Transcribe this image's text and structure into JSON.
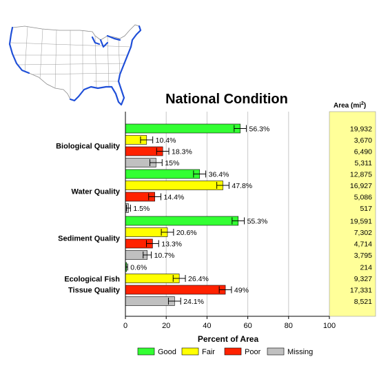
{
  "chart_data": {
    "type": "bar",
    "orientation": "horizontal",
    "title": "National Condition",
    "xlabel": "Percent of Area",
    "xlim": [
      0,
      100
    ],
    "xticks": [
      0,
      20,
      40,
      60,
      80,
      100
    ],
    "grid": true,
    "legend_position": "bottom",
    "area_column_title": "Area (mi",
    "area_column_unit_sup": "2",
    "area_column_title_end": ")",
    "area_column_color": "#ffff99",
    "series": [
      {
        "name": "Good",
        "color": "#33ff33"
      },
      {
        "name": "Fair",
        "color": "#ffff00"
      },
      {
        "name": "Poor",
        "color": "#ff2200"
      },
      {
        "name": "Missing",
        "color": "#c0c0c0"
      }
    ],
    "categories": [
      {
        "name_lines": [
          "Biological Quality"
        ],
        "values": [
          56.3,
          10.4,
          18.3,
          15
        ],
        "labels": [
          "56.3%",
          "10.4%",
          "18.3%",
          "15%"
        ],
        "errors": [
          3,
          3,
          3,
          3
        ],
        "areas": [
          "19,932",
          "3,670",
          "6,490",
          "5,311"
        ]
      },
      {
        "name_lines": [
          "Water Quality"
        ],
        "values": [
          36.4,
          47.8,
          14.4,
          1.5
        ],
        "labels": [
          "36.4%",
          "47.8%",
          "14.4%",
          "1.5%"
        ],
        "errors": [
          3,
          3,
          3,
          1
        ],
        "areas": [
          "12,875",
          "16,927",
          "5,086",
          "517"
        ]
      },
      {
        "name_lines": [
          "Sediment Quality"
        ],
        "values": [
          55.3,
          20.6,
          13.3,
          10.7
        ],
        "labels": [
          "55.3%",
          "20.6%",
          "13.3%",
          "10.7%"
        ],
        "errors": [
          3,
          3,
          3,
          2
        ],
        "areas": [
          "19,591",
          "7,302",
          "4,714",
          "3,795"
        ]
      },
      {
        "name_lines": [
          "Ecological Fish",
          "Tissue Quality"
        ],
        "values": [
          0.6,
          26.4,
          49,
          24.1
        ],
        "labels": [
          "0.6%",
          "26.4%",
          "49%",
          "24.1%"
        ],
        "errors": [
          0.5,
          3,
          3,
          3
        ],
        "areas": [
          "214",
          "9,327",
          "17,331",
          "8,521"
        ]
      }
    ]
  },
  "map": {
    "coast_color": "#1f4fd8",
    "land_color": "#ffffff",
    "border_color": "#8a8a8a"
  }
}
